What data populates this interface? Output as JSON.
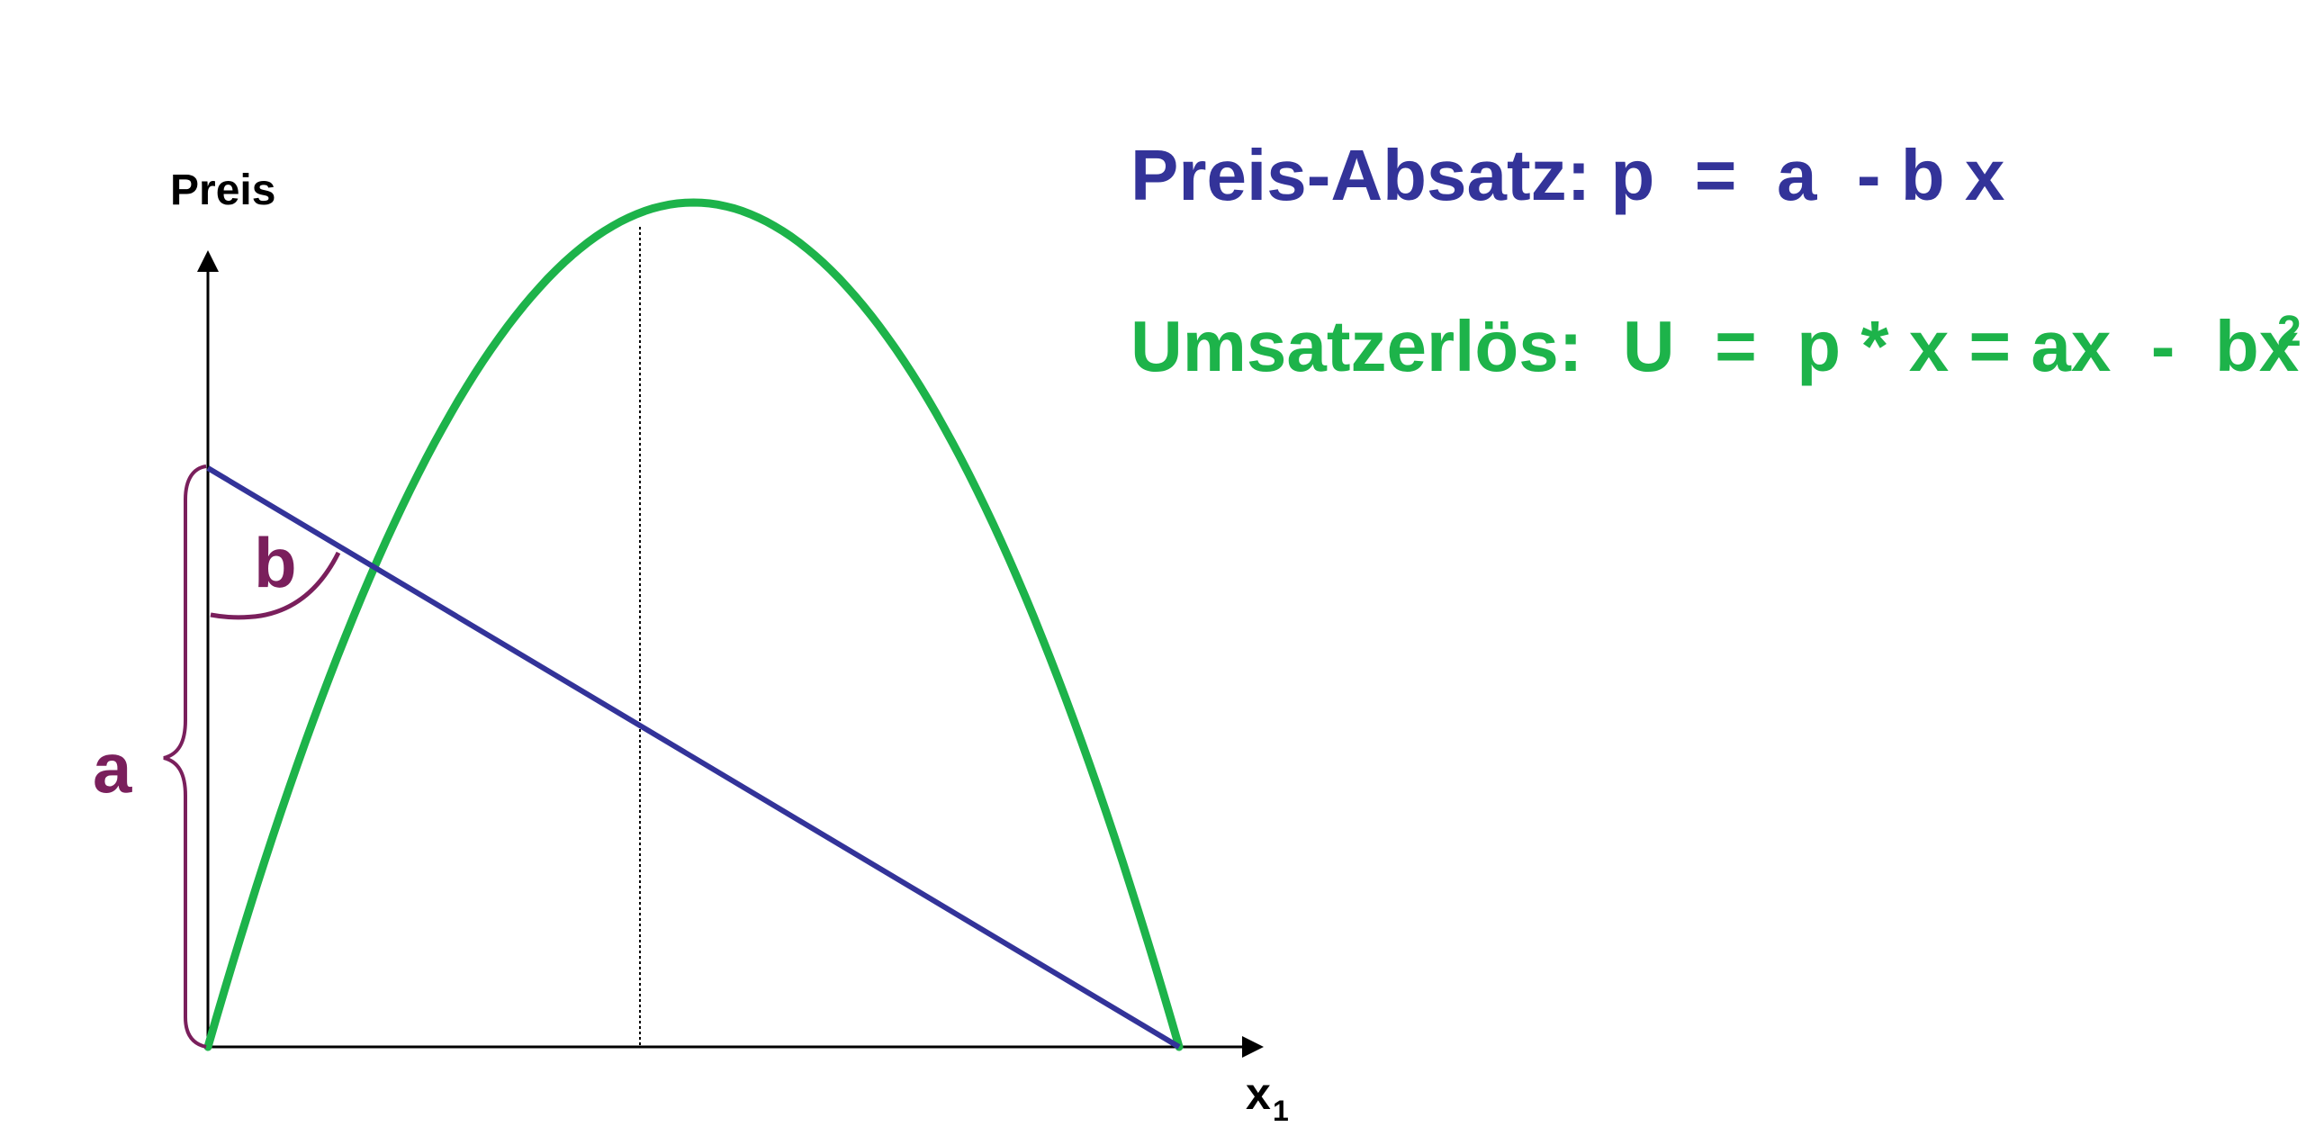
{
  "diagram": {
    "y_axis_label": "Preis",
    "x_axis_label": "x",
    "x_axis_subscript": "1",
    "label_a": "a",
    "label_b": "b",
    "formulas": {
      "price_sales": "Preis-Absatz: p  =  a  - b x",
      "revenue": "Umsatzerlös:  U  =  p * x = ax  -  bx",
      "revenue_superscript": "2"
    },
    "colors": {
      "price_line": "#333399",
      "revenue_curve": "#1db34a",
      "annotation": "#7a1f5c",
      "axes": "#000000"
    },
    "relationships": {
      "price_sales_line": {
        "intercept": "a",
        "slope": "-b"
      },
      "revenue_curve": {
        "formula": "U = ax - bx²",
        "max_at": "x = a/(2b)",
        "zeros": [
          "0",
          "a/b"
        ]
      }
    }
  }
}
